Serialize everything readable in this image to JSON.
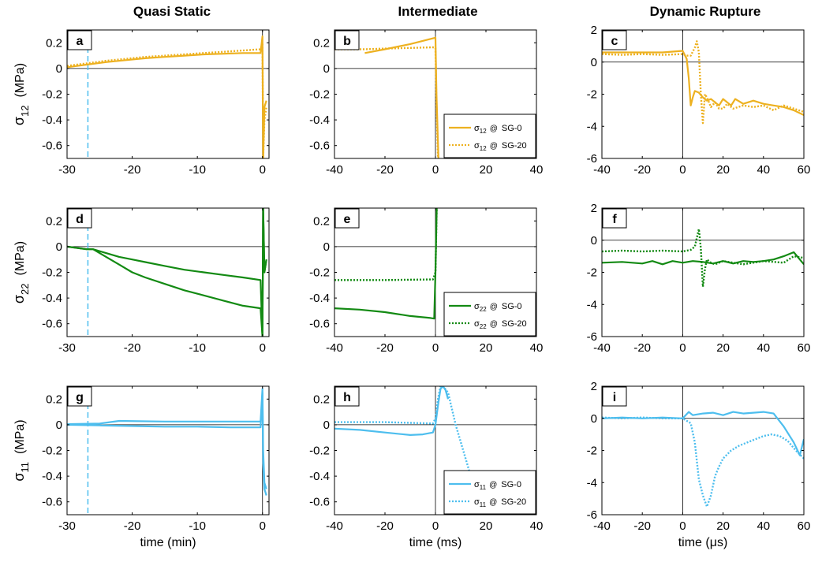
{
  "column_titles": [
    "Quasi Static",
    "Intermediate",
    "Dynamic Rupture"
  ],
  "row_ylabels": [
    {
      "sym": "σ",
      "sub": "12",
      "unit": "(MPa)"
    },
    {
      "sym": "σ",
      "sub": "22",
      "unit": "(MPa)"
    },
    {
      "sym": "σ",
      "sub": "11",
      "unit": "(MPa)"
    }
  ],
  "xlabels": [
    "time  (min)",
    "time  (ms)",
    "time  (μs)"
  ],
  "colors": {
    "row1": "#EDB120",
    "row2": "#138A13",
    "row3": "#4DBEEE",
    "marker_line": "#4DBEEE"
  },
  "legend_label_suffix": "@",
  "legend_entries": [
    "SG-0",
    "SG-20"
  ],
  "chart_data": [
    {
      "panel": "a",
      "type": "line",
      "xlim": [
        -30,
        1
      ],
      "ylim": [
        -0.7,
        0.3
      ],
      "xticks": [
        -30,
        -20,
        -10,
        0
      ],
      "yticks": [
        0.2,
        0,
        -0.2,
        -0.4,
        -0.6
      ],
      "vline_dashed": -26.8,
      "series": [
        {
          "name": "SG-0",
          "style": "solid",
          "x": [
            -30,
            -27,
            -24,
            -21,
            -18,
            -15,
            -12,
            -9,
            -6,
            -3,
            -0.3,
            0,
            0.1,
            0.3,
            0.6
          ],
          "y": [
            0.01,
            0.03,
            0.05,
            0.065,
            0.08,
            0.09,
            0.1,
            0.11,
            0.115,
            0.12,
            0.12,
            0.25,
            -0.7,
            -0.3,
            -0.25
          ]
        },
        {
          "name": "SG-20",
          "style": "dotted",
          "x": [
            -30,
            -27,
            -24,
            -21,
            -18,
            -15,
            -12,
            -9,
            -6,
            -3,
            -0.3,
            0,
            0.1,
            0.3,
            0.6
          ],
          "y": [
            0.02,
            0.04,
            0.06,
            0.075,
            0.09,
            0.1,
            0.11,
            0.12,
            0.13,
            0.14,
            0.15,
            0.2,
            -0.7,
            -0.4,
            -0.3
          ]
        }
      ]
    },
    {
      "panel": "b",
      "type": "line",
      "xlim": [
        -40,
        40
      ],
      "ylim": [
        -0.7,
        0.3
      ],
      "xticks": [
        -40,
        -20,
        0,
        20,
        40
      ],
      "yticks": [
        0.2,
        0,
        -0.2,
        -0.4,
        -0.6
      ],
      "legend": true,
      "series": [
        {
          "name": "SG-0",
          "style": "solid",
          "x": [
            -28,
            -20,
            -10,
            0,
            0.4,
            1.2
          ],
          "y": [
            0.12,
            0.15,
            0.19,
            0.24,
            -0.2,
            -0.7
          ]
        },
        {
          "name": "SG-20",
          "style": "dotted",
          "x": [
            -40,
            -28,
            -20,
            -10,
            -1,
            0,
            0.4,
            1
          ],
          "y": [
            0.15,
            0.15,
            0.155,
            0.16,
            0.165,
            0.16,
            -0.3,
            -0.7
          ]
        }
      ]
    },
    {
      "panel": "c",
      "type": "line",
      "xlim": [
        -40,
        60
      ],
      "ylim": [
        -6,
        2
      ],
      "xticks": [
        -40,
        -20,
        0,
        20,
        40,
        60
      ],
      "yticks": [
        2,
        0,
        -2,
        -4,
        -6
      ],
      "series": [
        {
          "name": "SG-0",
          "style": "solid",
          "x": [
            -40,
            -30,
            -20,
            -10,
            -5,
            0,
            2,
            3,
            4,
            5,
            6,
            8,
            10,
            12,
            14,
            16,
            18,
            20,
            22,
            24,
            26,
            30,
            35,
            40,
            45,
            50,
            55,
            60
          ],
          "y": [
            0.6,
            0.6,
            0.6,
            0.6,
            0.65,
            0.7,
            0.2,
            -1,
            -2.7,
            -2.2,
            -1.8,
            -1.9,
            -2.2,
            -2.4,
            -2.3,
            -2.5,
            -2.7,
            -2.3,
            -2.5,
            -2.7,
            -2.3,
            -2.6,
            -2.4,
            -2.6,
            -2.7,
            -2.8,
            -3.0,
            -3.3
          ]
        },
        {
          "name": "SG-20",
          "style": "dotted",
          "x": [
            -40,
            -30,
            -20,
            -10,
            0,
            2,
            4,
            6,
            7,
            8,
            9,
            10,
            11,
            12,
            14,
            16,
            18,
            20,
            22,
            25,
            30,
            35,
            40,
            45,
            50,
            55,
            60
          ],
          "y": [
            0.5,
            0.45,
            0.5,
            0.45,
            0.5,
            0.4,
            0.4,
            0.9,
            1.3,
            0.6,
            -2,
            -3.8,
            -2.0,
            -2.2,
            -2.8,
            -2.5,
            -2.9,
            -2.9,
            -2.6,
            -2.9,
            -2.7,
            -2.8,
            -2.7,
            -3.0,
            -2.7,
            -2.9,
            -3.1
          ]
        }
      ]
    },
    {
      "panel": "d",
      "type": "line",
      "xlim": [
        -30,
        1
      ],
      "ylim": [
        -0.7,
        0.3
      ],
      "xticks": [
        -30,
        -20,
        -10,
        0
      ],
      "yticks": [
        0.2,
        0,
        -0.2,
        -0.4,
        -0.6
      ],
      "vline_dashed": -26.8,
      "series": [
        {
          "name": "SG-0",
          "style": "solid",
          "x": [
            -30,
            -27,
            -26,
            -24,
            -22,
            -20,
            -18,
            -15,
            -12,
            -9,
            -6,
            -3,
            -0.3,
            0,
            0.1,
            0.3,
            0.6
          ],
          "y": [
            0,
            -0.02,
            -0.02,
            -0.08,
            -0.14,
            -0.2,
            -0.24,
            -0.29,
            -0.34,
            -0.38,
            -0.42,
            -0.46,
            -0.48,
            -0.7,
            0.3,
            -0.2,
            -0.1
          ]
        },
        {
          "name": "SG-20",
          "style": "solid",
          "x": [
            -30,
            -27,
            -26,
            -24,
            -22,
            -20,
            -18,
            -15,
            -12,
            -9,
            -6,
            -3,
            -0.3,
            0,
            0.1,
            0.3,
            0.6
          ],
          "y": [
            0,
            -0.02,
            -0.02,
            -0.05,
            -0.08,
            -0.1,
            -0.12,
            -0.15,
            -0.18,
            -0.2,
            -0.22,
            -0.24,
            -0.26,
            -0.7,
            0.3,
            -0.2,
            -0.1
          ]
        }
      ]
    },
    {
      "panel": "e",
      "type": "line",
      "xlim": [
        -40,
        40
      ],
      "ylim": [
        -0.7,
        0.3
      ],
      "xticks": [
        -40,
        -20,
        0,
        20,
        40
      ],
      "yticks": [
        0.2,
        0,
        -0.2,
        -0.4,
        -0.6
      ],
      "legend": true,
      "series": [
        {
          "name": "SG-0",
          "style": "solid",
          "x": [
            -40,
            -30,
            -20,
            -10,
            -2,
            -0.5,
            0,
            0.5
          ],
          "y": [
            -0.48,
            -0.49,
            -0.51,
            -0.54,
            -0.555,
            -0.56,
            -0.2,
            0.3
          ]
        },
        {
          "name": "SG-20",
          "style": "dotted",
          "x": [
            -40,
            -20,
            -1,
            0,
            0.5
          ],
          "y": [
            -0.26,
            -0.26,
            -0.255,
            -0.2,
            0.3
          ]
        }
      ]
    },
    {
      "panel": "f",
      "type": "line",
      "xlim": [
        -40,
        60
      ],
      "ylim": [
        -6,
        2
      ],
      "xticks": [
        -40,
        -20,
        0,
        20,
        40,
        60
      ],
      "yticks": [
        2,
        0,
        -2,
        -4,
        -6
      ],
      "series": [
        {
          "name": "SG-0",
          "style": "solid",
          "x": [
            -40,
            -30,
            -20,
            -15,
            -10,
            -5,
            0,
            5,
            10,
            15,
            20,
            25,
            30,
            35,
            40,
            45,
            50,
            55,
            58,
            60
          ],
          "y": [
            -1.4,
            -1.35,
            -1.45,
            -1.3,
            -1.5,
            -1.3,
            -1.4,
            -1.3,
            -1.35,
            -1.45,
            -1.3,
            -1.45,
            -1.3,
            -1.35,
            -1.3,
            -1.2,
            -1.0,
            -0.75,
            -1.2,
            -1.5
          ]
        },
        {
          "name": "SG-20",
          "style": "dotted",
          "x": [
            -40,
            -30,
            -20,
            -10,
            0,
            4,
            6,
            8,
            9,
            10,
            11,
            12,
            14,
            16,
            20,
            30,
            40,
            50,
            55,
            60
          ],
          "y": [
            -0.7,
            -0.65,
            -0.7,
            -0.65,
            -0.7,
            -0.6,
            -0.4,
            0.7,
            -0.5,
            -2.9,
            -1.8,
            -1.2,
            -1.4,
            -1.5,
            -1.3,
            -1.5,
            -1.3,
            -1.4,
            -1.0,
            -1.1
          ]
        }
      ]
    },
    {
      "panel": "g",
      "type": "line",
      "xlim": [
        -30,
        1
      ],
      "ylim": [
        -0.7,
        0.3
      ],
      "xticks": [
        -30,
        -20,
        -10,
        0
      ],
      "yticks": [
        0.2,
        0,
        -0.2,
        -0.4,
        -0.6
      ],
      "vline_dashed": -26.8,
      "series": [
        {
          "name": "SG-0",
          "style": "solid",
          "x": [
            -30,
            -25,
            -20,
            -15,
            -10,
            -5,
            -0.3,
            0,
            0.1,
            0.3,
            0.6
          ],
          "y": [
            0,
            -0.005,
            -0.01,
            -0.015,
            -0.015,
            -0.02,
            -0.02,
            0.25,
            -0.3,
            -0.5,
            -0.55
          ]
        },
        {
          "name": "SG-20",
          "style": "solid",
          "x": [
            -30,
            -25,
            -22,
            -15,
            -10,
            -5,
            -0.3,
            0,
            0.1,
            0.3,
            0.6
          ],
          "y": [
            0.005,
            0.01,
            0.03,
            0.025,
            0.025,
            0.025,
            0.025,
            0.28,
            -0.2,
            -0.45,
            -0.5
          ]
        }
      ]
    },
    {
      "panel": "h",
      "type": "line",
      "xlim": [
        -40,
        40
      ],
      "ylim": [
        -0.7,
        0.3
      ],
      "xticks": [
        -40,
        -20,
        0,
        20,
        40
      ],
      "yticks": [
        0.2,
        0,
        -0.2,
        -0.4,
        -0.6
      ],
      "legend": true,
      "series": [
        {
          "name": "SG-0",
          "style": "solid",
          "x": [
            -40,
            -30,
            -20,
            -10,
            -5,
            -1,
            0,
            1,
            2,
            3,
            4,
            5
          ],
          "y": [
            -0.03,
            -0.04,
            -0.06,
            -0.08,
            -0.075,
            -0.06,
            0.0,
            0.15,
            0.28,
            0.3,
            0.27,
            0.2
          ]
        },
        {
          "name": "SG-20",
          "style": "dotted",
          "x": [
            -40,
            -20,
            -1,
            0,
            1,
            2,
            3,
            5,
            8,
            11,
            14,
            17,
            20,
            21
          ],
          "y": [
            0.02,
            0.02,
            0.01,
            0.05,
            0.2,
            0.3,
            0.3,
            0.25,
            0.0,
            -0.2,
            -0.4,
            -0.55,
            -0.68,
            -0.7
          ]
        }
      ]
    },
    {
      "panel": "i",
      "type": "line",
      "xlim": [
        -40,
        60
      ],
      "ylim": [
        -6,
        2
      ],
      "xticks": [
        -40,
        -20,
        0,
        20,
        40,
        60
      ],
      "yticks": [
        2,
        0,
        -2,
        -4,
        -6
      ],
      "series": [
        {
          "name": "SG-0",
          "style": "solid",
          "x": [
            -40,
            -30,
            -20,
            -10,
            0,
            3,
            5,
            10,
            15,
            20,
            25,
            30,
            35,
            40,
            45,
            50,
            55,
            58,
            60
          ],
          "y": [
            0.0,
            0.05,
            0.0,
            0.05,
            0.0,
            0.4,
            0.2,
            0.3,
            0.35,
            0.2,
            0.4,
            0.3,
            0.35,
            0.4,
            0.3,
            -0.5,
            -1.5,
            -2.3,
            -1.3
          ]
        },
        {
          "name": "SG-20",
          "style": "dotted",
          "x": [
            -40,
            -30,
            -20,
            -10,
            0,
            4,
            6,
            8,
            10,
            12,
            14,
            16,
            18,
            20,
            24,
            28,
            32,
            36,
            40,
            44,
            48,
            52,
            56,
            60
          ],
          "y": [
            0.05,
            0.0,
            0.05,
            0.0,
            0.0,
            -0.3,
            -1.5,
            -3.8,
            -4.8,
            -5.5,
            -4.8,
            -3.6,
            -3.0,
            -2.5,
            -2.0,
            -1.7,
            -1.5,
            -1.3,
            -1.1,
            -1.0,
            -1.1,
            -1.4,
            -2.0,
            -2.5
          ]
        }
      ]
    }
  ]
}
